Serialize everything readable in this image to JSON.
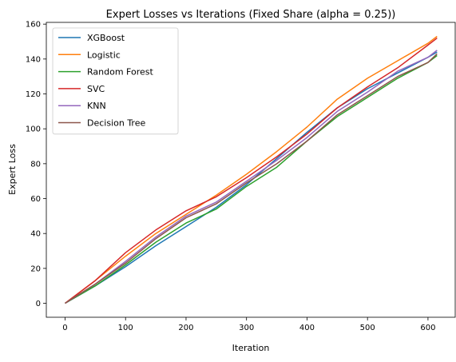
{
  "chart_data": {
    "type": "line",
    "title": "Expert Losses vs Iterations (Fixed Share (alpha = 0.25))",
    "xlabel": "Iteration",
    "ylabel": "Expert Loss",
    "xlim": [
      -31,
      645
    ],
    "ylim": [
      -8,
      161
    ],
    "xticks": [
      0,
      100,
      200,
      300,
      400,
      500,
      600
    ],
    "yticks": [
      0,
      20,
      40,
      60,
      80,
      100,
      120,
      140,
      160
    ],
    "grid": false,
    "legend_position": "top-left",
    "series": [
      {
        "name": "XGBoost",
        "color": "#1f77b4",
        "points": [
          [
            0,
            0
          ],
          [
            50,
            10
          ],
          [
            100,
            21
          ],
          [
            150,
            33
          ],
          [
            200,
            44
          ],
          [
            250,
            55
          ],
          [
            300,
            68
          ],
          [
            350,
            83
          ],
          [
            400,
            98
          ],
          [
            450,
            112
          ],
          [
            500,
            123
          ],
          [
            550,
            132
          ],
          [
            600,
            141
          ],
          [
            615,
            144
          ]
        ]
      },
      {
        "name": "Logistic",
        "color": "#ff7f0e",
        "points": [
          [
            0,
            0
          ],
          [
            50,
            13
          ],
          [
            100,
            27
          ],
          [
            150,
            40
          ],
          [
            200,
            51
          ],
          [
            250,
            62
          ],
          [
            300,
            74
          ],
          [
            350,
            87
          ],
          [
            400,
            101
          ],
          [
            450,
            117
          ],
          [
            500,
            129
          ],
          [
            550,
            139
          ],
          [
            600,
            149
          ],
          [
            615,
            153
          ]
        ]
      },
      {
        "name": "Random Forest",
        "color": "#2ca02c",
        "points": [
          [
            0,
            0
          ],
          [
            50,
            10
          ],
          [
            100,
            22
          ],
          [
            150,
            35
          ],
          [
            200,
            46
          ],
          [
            250,
            54
          ],
          [
            300,
            67
          ],
          [
            350,
            78
          ],
          [
            400,
            93
          ],
          [
            450,
            107
          ],
          [
            500,
            118
          ],
          [
            550,
            129
          ],
          [
            600,
            138
          ],
          [
            615,
            142
          ]
        ]
      },
      {
        "name": "SVC",
        "color": "#d62728",
        "points": [
          [
            0,
            0
          ],
          [
            50,
            13
          ],
          [
            100,
            29
          ],
          [
            150,
            42
          ],
          [
            200,
            53
          ],
          [
            250,
            61
          ],
          [
            300,
            72
          ],
          [
            350,
            84
          ],
          [
            400,
            97
          ],
          [
            450,
            112
          ],
          [
            500,
            124
          ],
          [
            550,
            135
          ],
          [
            600,
            148
          ],
          [
            615,
            152
          ]
        ]
      },
      {
        "name": "KNN",
        "color": "#9467bd",
        "points": [
          [
            0,
            0
          ],
          [
            50,
            11
          ],
          [
            100,
            24
          ],
          [
            150,
            38
          ],
          [
            200,
            50
          ],
          [
            250,
            58
          ],
          [
            300,
            70
          ],
          [
            350,
            82
          ],
          [
            400,
            95
          ],
          [
            450,
            110
          ],
          [
            500,
            121
          ],
          [
            550,
            133
          ],
          [
            600,
            141
          ],
          [
            615,
            145
          ]
        ]
      },
      {
        "name": "Decision Tree",
        "color": "#8c564b",
        "points": [
          [
            0,
            0
          ],
          [
            50,
            11
          ],
          [
            100,
            23
          ],
          [
            150,
            37
          ],
          [
            200,
            49
          ],
          [
            250,
            57
          ],
          [
            300,
            69
          ],
          [
            350,
            80
          ],
          [
            400,
            93
          ],
          [
            450,
            108
          ],
          [
            500,
            119
          ],
          [
            550,
            130
          ],
          [
            600,
            138
          ],
          [
            615,
            143
          ]
        ]
      }
    ]
  }
}
